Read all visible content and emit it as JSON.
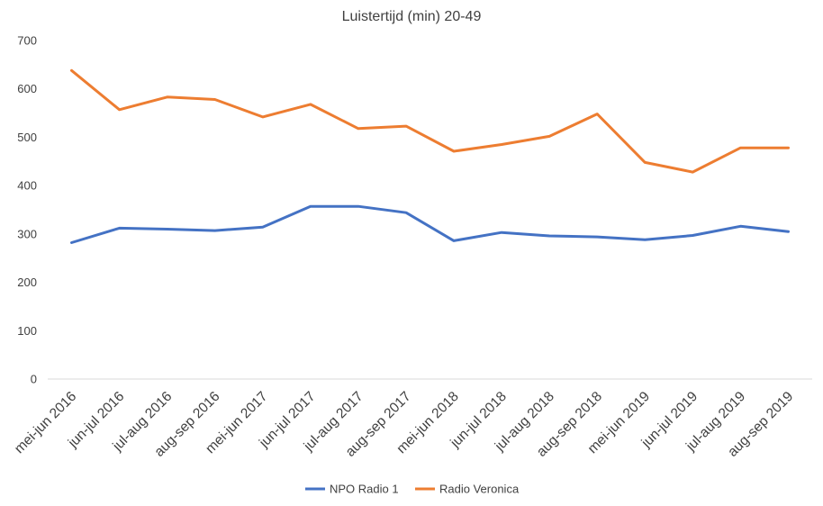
{
  "chart_data": {
    "type": "line",
    "title": "Luistertijd (min) 20-49",
    "xlabel": "",
    "ylabel": "",
    "ylim": [
      0,
      700
    ],
    "yticks": [
      0,
      100,
      200,
      300,
      400,
      500,
      600,
      700
    ],
    "ytick_labels": [
      "0",
      "100",
      "200",
      "300",
      "400",
      "500",
      "600",
      "700"
    ],
    "grid": false,
    "legend_position": "bottom",
    "categories": [
      "mei-jun 2016",
      "jun-jul 2016",
      "jul-aug 2016",
      "aug-sep 2016",
      "mei-jun 2017",
      "jun-jul 2017",
      "jul-aug 2017",
      "aug-sep 2017",
      "mei-jun 2018",
      "jun-jul 2018",
      "jul-aug 2018",
      "aug-sep 2018",
      "mei-jun 2019",
      "jun-jul 2019",
      "jul-aug 2019",
      "aug-sep 2019"
    ],
    "series": [
      {
        "name": "NPO Radio 1",
        "color": "#4472C4",
        "values": [
          282,
          312,
          310,
          307,
          314,
          357,
          357,
          344,
          286,
          303,
          296,
          294,
          288,
          297,
          316,
          305
        ]
      },
      {
        "name": "Radio Veronica",
        "color": "#ED7D31",
        "values": [
          638,
          557,
          583,
          578,
          542,
          568,
          518,
          523,
          471,
          485,
          502,
          548,
          448,
          428,
          478,
          478
        ]
      }
    ]
  }
}
